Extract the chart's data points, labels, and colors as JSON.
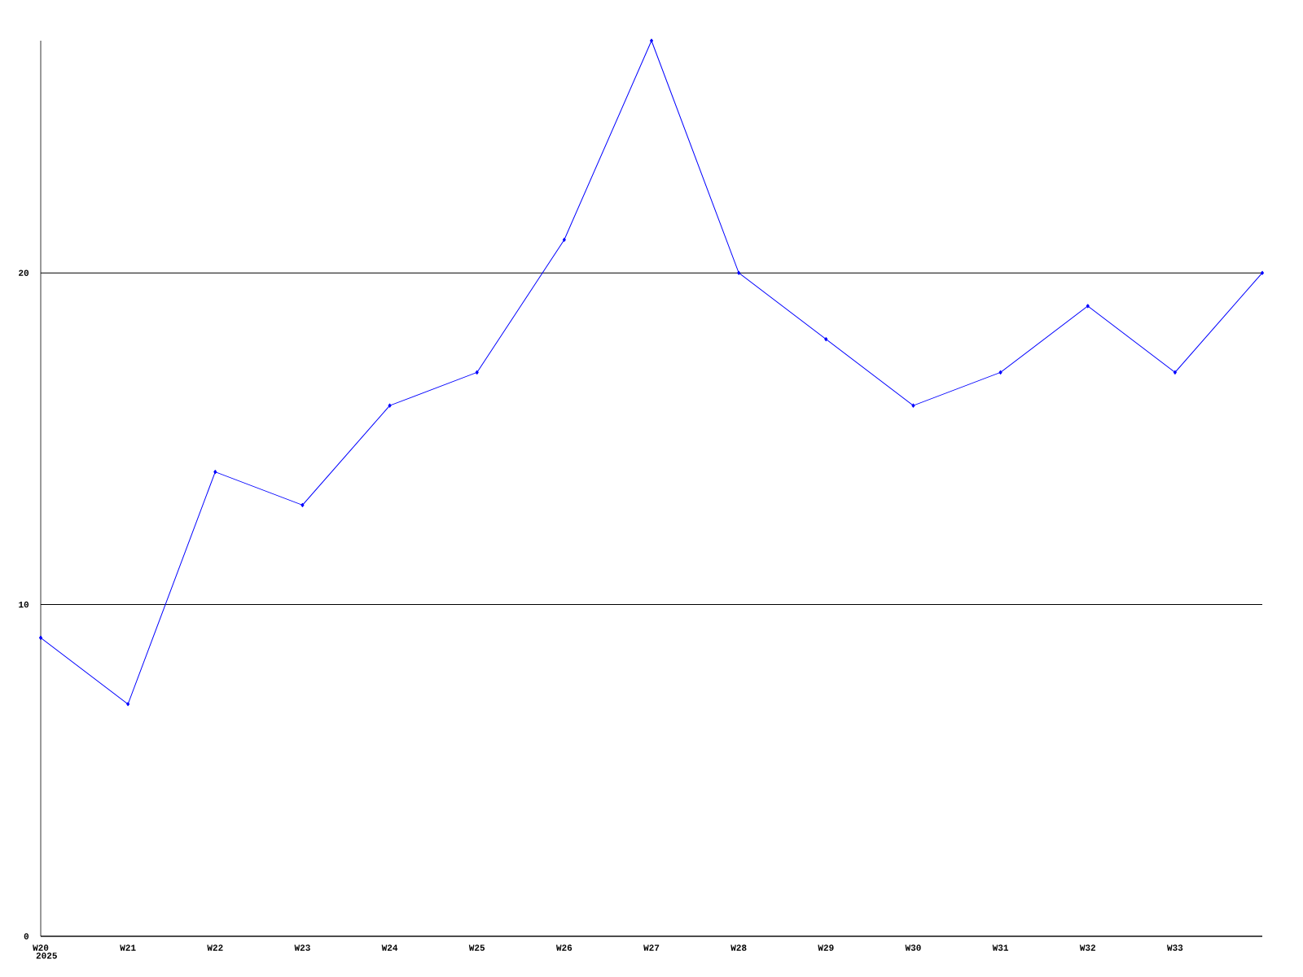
{
  "chart_data": {
    "type": "line",
    "categories": [
      "W20",
      "W21",
      "W22",
      "W23",
      "W24",
      "W25",
      "W26",
      "W27",
      "W28",
      "W29",
      "W30",
      "W31",
      "W32",
      "W33",
      null
    ],
    "series": [
      {
        "color": "#0000ff",
        "values": [
          9,
          7,
          14,
          13,
          16,
          17,
          21,
          27,
          20,
          18,
          16,
          17,
          19,
          17,
          20
        ]
      }
    ],
    "ylim": [
      0,
      27
    ],
    "yticks": [
      0,
      10,
      20
    ],
    "grid": "y",
    "marker": "diamond",
    "line_style": "solid",
    "annotations": [
      "2025"
    ]
  }
}
